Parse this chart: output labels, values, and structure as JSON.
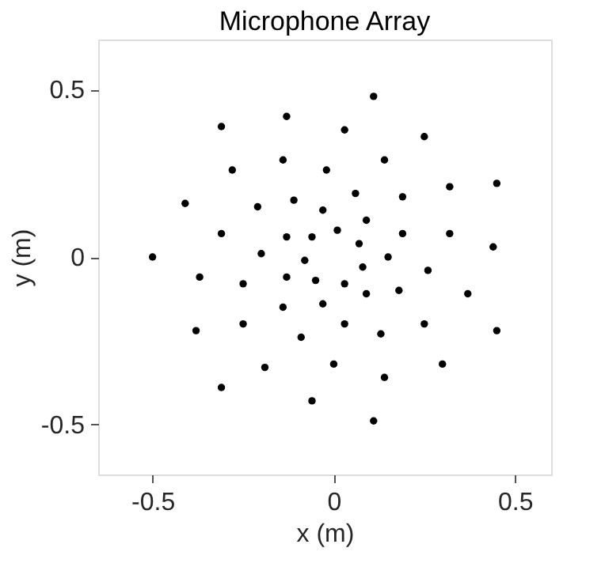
{
  "chart_data": {
    "type": "scatter",
    "title": "Microphone Array",
    "xlabel": "x (m)",
    "ylabel": "y (m)",
    "x": [
      0.11,
      -0.13,
      -0.31,
      0.03,
      0.25,
      -0.14,
      0.14,
      -0.28,
      -0.02,
      -0.41,
      0.06,
      0.32,
      0.45,
      -0.21,
      -0.11,
      0.19,
      -0.03,
      0.09,
      -0.31,
      -0.13,
      -0.06,
      0.01,
      0.19,
      0.32,
      0.07,
      0.44,
      -0.2,
      -0.5,
      -0.08,
      0.15,
      0.08,
      0.26,
      -0.37,
      -0.25,
      -0.13,
      -0.05,
      0.03,
      0.09,
      0.18,
      0.37,
      -0.14,
      -0.03,
      -0.38,
      -0.25,
      0.03,
      0.25,
      -0.09,
      0.13,
      0.45,
      -0.19,
      0.0,
      0.3,
      0.14,
      -0.31,
      -0.06,
      0.11
    ],
    "values": [
      0.48,
      0.42,
      0.39,
      0.38,
      0.36,
      0.29,
      0.29,
      0.26,
      0.26,
      0.16,
      0.19,
      0.21,
      0.22,
      0.15,
      0.17,
      0.18,
      0.14,
      0.11,
      0.07,
      0.06,
      0.06,
      0.08,
      0.07,
      0.07,
      0.04,
      0.03,
      0.01,
      0.0,
      -0.01,
      0.0,
      -0.03,
      -0.04,
      -0.06,
      -0.08,
      -0.06,
      -0.07,
      -0.08,
      -0.11,
      -0.1,
      -0.11,
      -0.15,
      -0.14,
      -0.22,
      -0.2,
      -0.2,
      -0.2,
      -0.24,
      -0.23,
      -0.22,
      -0.33,
      -0.32,
      -0.32,
      -0.36,
      -0.39,
      -0.43,
      -0.49
    ],
    "color": "#000000",
    "marker": "circle",
    "xlim": [
      -0.65,
      0.6
    ],
    "ylim": [
      -0.65,
      0.65
    ],
    "xticks": [
      -0.5,
      0,
      0.5
    ],
    "yticks": [
      -0.5,
      0,
      0.5
    ],
    "grid": false
  }
}
